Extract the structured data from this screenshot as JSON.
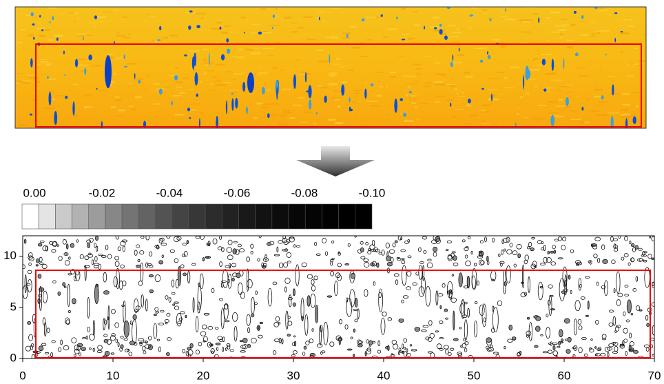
{
  "chart_data": {
    "type": "contour",
    "colorbar": {
      "clim": [
        0,
        -0.1
      ],
      "ticks": [
        {
          "value": 0,
          "label": "0.00"
        },
        -0.02,
        -0.04,
        -0.06,
        -0.08,
        {
          "value": -0.1,
          "label": "-0.10"
        }
      ]
    },
    "xlim": [
      0,
      70
    ],
    "xticks": [
      0,
      10,
      20,
      30,
      40,
      50,
      60,
      70
    ],
    "ylim": [
      0,
      12
    ],
    "yticks": [
      0,
      5,
      10
    ]
  }
}
